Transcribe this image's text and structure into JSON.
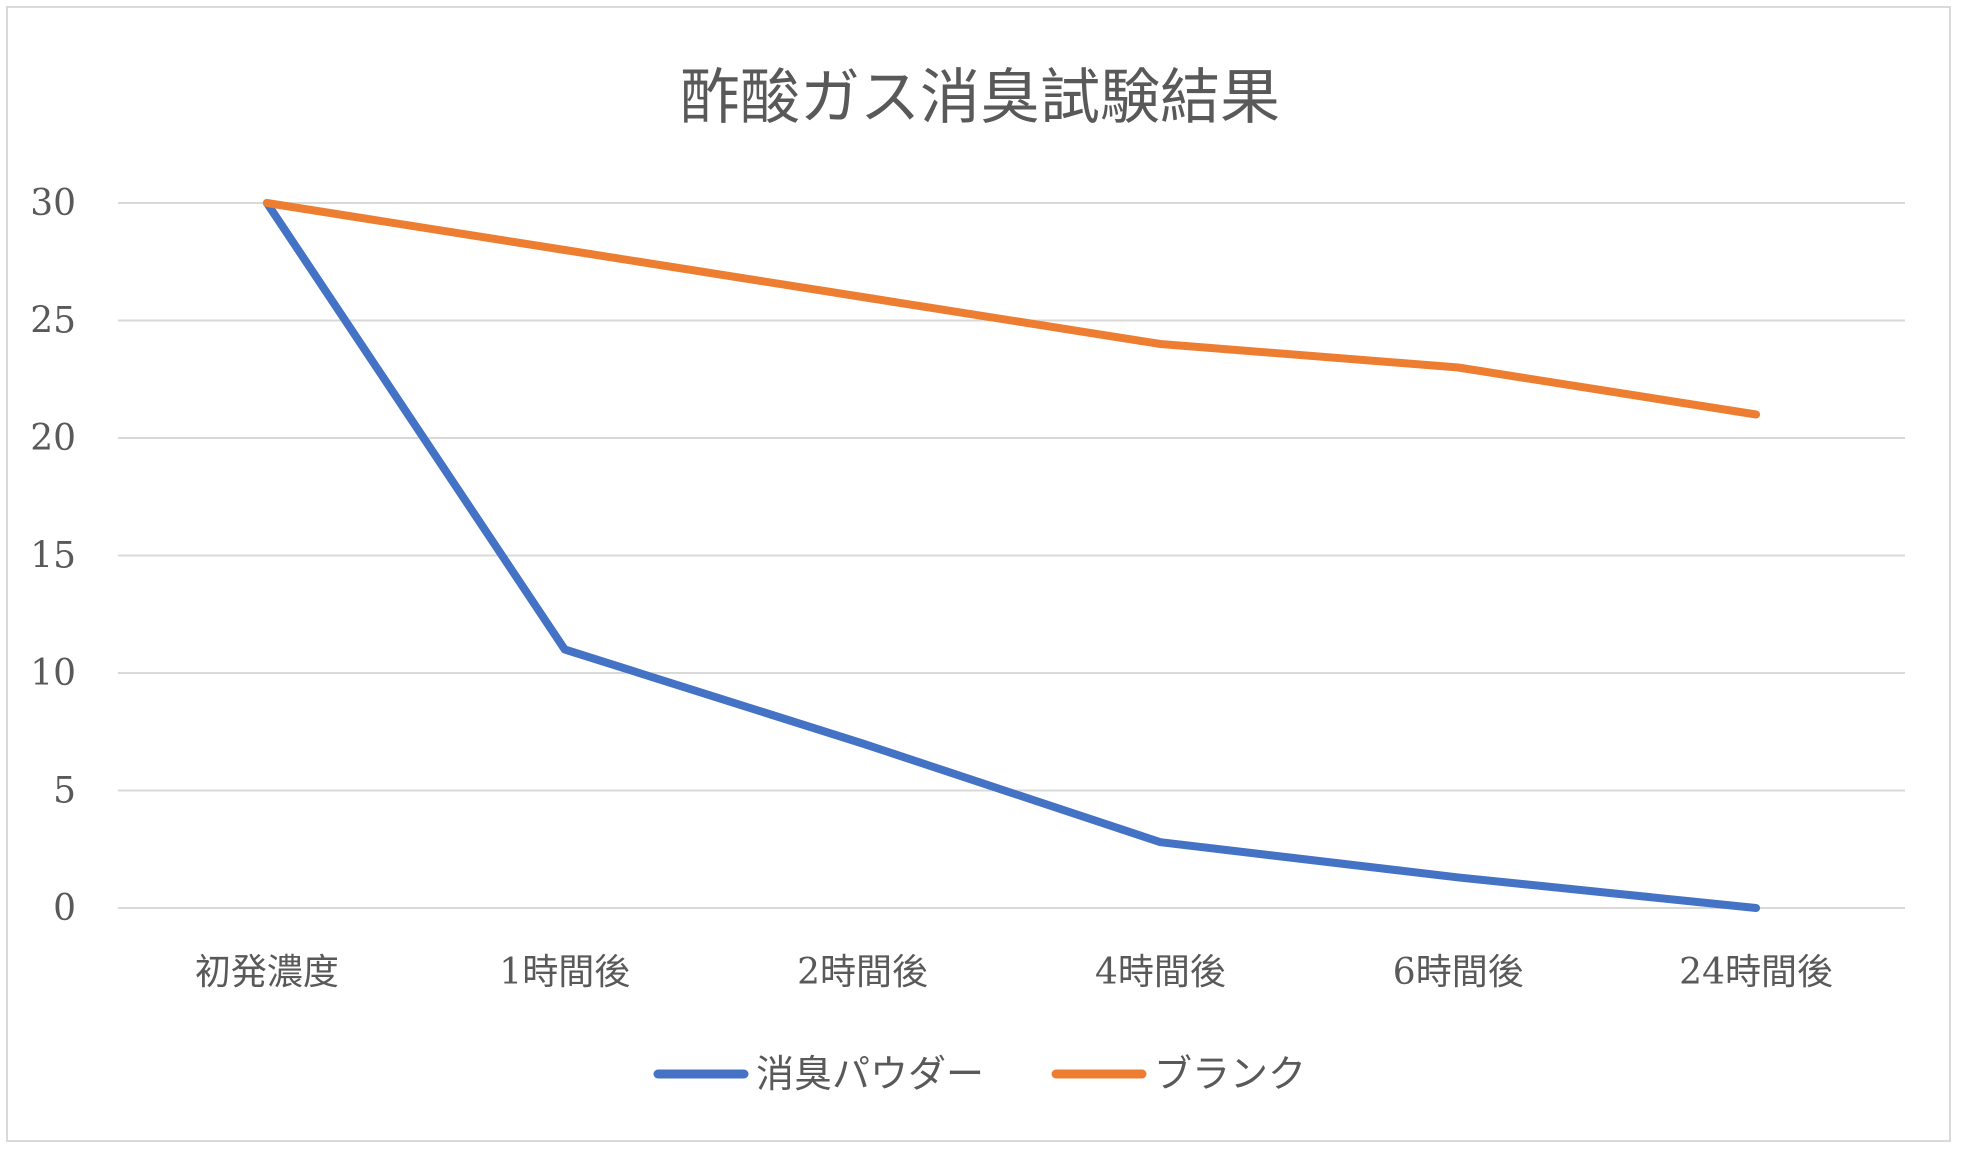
{
  "chart_data": {
    "type": "line",
    "title": "酢酸ガス消臭試験結果",
    "xlabel": "",
    "ylabel": "",
    "categories": [
      "初発濃度",
      "1時間後",
      "2時間後",
      "4時間後",
      "6時間後",
      "24時間後"
    ],
    "series": [
      {
        "name": "消臭パウダー",
        "color": "#4472C4",
        "values": [
          30,
          11,
          7,
          2.8,
          1.3,
          0
        ]
      },
      {
        "name": "ブランク",
        "color": "#ED7D31",
        "values": [
          30,
          28,
          26,
          24,
          23,
          21
        ]
      }
    ],
    "ylim": [
      0,
      30
    ],
    "yticks": [
      0,
      5,
      10,
      15,
      20,
      25,
      30
    ],
    "grid": true,
    "legend_position": "bottom"
  }
}
